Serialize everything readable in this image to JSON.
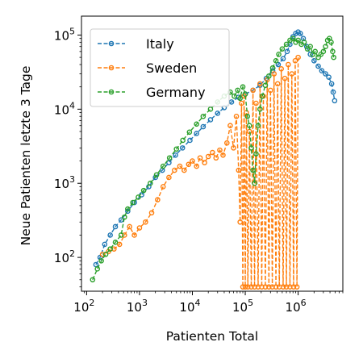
{
  "chart_data": {
    "type": "line",
    "title": "",
    "xlabel": "Patienten Total",
    "ylabel": "Neue Patienten letzte 3 Tage",
    "xscale": "log",
    "yscale": "log",
    "xlim": [
      80,
      7000000
    ],
    "ylim": [
      35,
      180000
    ],
    "grid": false,
    "legend_position": "top-left",
    "x_ticks": [
      {
        "base": "10",
        "exp": "2"
      },
      {
        "base": "10",
        "exp": "3"
      },
      {
        "base": "10",
        "exp": "4"
      },
      {
        "base": "10",
        "exp": "5"
      },
      {
        "base": "10",
        "exp": "6"
      }
    ],
    "y_ticks": [
      {
        "base": "10",
        "exp": "2"
      },
      {
        "base": "10",
        "exp": "3"
      },
      {
        "base": "10",
        "exp": "4"
      },
      {
        "base": "10",
        "exp": "5"
      }
    ],
    "series": [
      {
        "name": "Italy",
        "color": "#1f77b4",
        "marker": "circle-open",
        "linestyle": "dashed",
        "points": [
          [
            150,
            80
          ],
          [
            180,
            100
          ],
          [
            220,
            150
          ],
          [
            280,
            200
          ],
          [
            350,
            260
          ],
          [
            450,
            320
          ],
          [
            600,
            420
          ],
          [
            800,
            550
          ],
          [
            1100,
            700
          ],
          [
            1500,
            900
          ],
          [
            2000,
            1200
          ],
          [
            2700,
            1500
          ],
          [
            3600,
            1900
          ],
          [
            4800,
            2400
          ],
          [
            6500,
            3000
          ],
          [
            9000,
            3800
          ],
          [
            12000,
            4700
          ],
          [
            16000,
            5800
          ],
          [
            22000,
            7200
          ],
          [
            30000,
            8800
          ],
          [
            40000,
            10500
          ],
          [
            55000,
            12500
          ],
          [
            75000,
            14500
          ],
          [
            100000,
            16000
          ],
          [
            140000,
            18000
          ],
          [
            190000,
            21000
          ],
          [
            250000,
            26000
          ],
          [
            330000,
            33000
          ],
          [
            420000,
            40000
          ],
          [
            520000,
            48000
          ],
          [
            620000,
            60000
          ],
          [
            700000,
            75000
          ],
          [
            800000,
            95000
          ],
          [
            900000,
            105000
          ],
          [
            1000000,
            110000
          ],
          [
            1100000,
            105000
          ],
          [
            1250000,
            90000
          ],
          [
            1450000,
            70000
          ],
          [
            1700000,
            55000
          ],
          [
            2000000,
            45000
          ],
          [
            2400000,
            38000
          ],
          [
            2800000,
            33000
          ],
          [
            3300000,
            30000
          ],
          [
            3800000,
            27000
          ],
          [
            4300000,
            22000
          ],
          [
            4600000,
            17000
          ],
          [
            4900000,
            13000
          ]
        ]
      },
      {
        "name": "Sweden",
        "color": "#ff7f0e",
        "marker": "circle-open",
        "linestyle": "dashed",
        "points": [
          [
            200,
            110
          ],
          [
            260,
            120
          ],
          [
            330,
            130
          ],
          [
            420,
            150
          ],
          [
            520,
            200
          ],
          [
            650,
            260
          ],
          [
            800,
            200
          ],
          [
            1000,
            250
          ],
          [
            1300,
            300
          ],
          [
            1700,
            400
          ],
          [
            2200,
            600
          ],
          [
            2800,
            900
          ],
          [
            3600,
            1200
          ],
          [
            4600,
            1500
          ],
          [
            5800,
            1700
          ],
          [
            7000,
            1500
          ],
          [
            8500,
            1800
          ],
          [
            10000,
            2000
          ],
          [
            12000,
            1700
          ],
          [
            14000,
            2200
          ],
          [
            17000,
            1900
          ],
          [
            20000,
            2300
          ],
          [
            24000,
            2600
          ],
          [
            28000,
            2200
          ],
          [
            33000,
            2800
          ],
          [
            38000,
            2400
          ],
          [
            45000,
            3500
          ],
          [
            52000,
            6000
          ],
          [
            60000,
            3000
          ],
          [
            68000,
            8000
          ],
          [
            75000,
            1500
          ],
          [
            80000,
            300
          ],
          [
            85000,
            12000
          ],
          [
            90000,
            40
          ],
          [
            95000,
            15000
          ],
          [
            100000,
            40
          ],
          [
            105000,
            9000
          ],
          [
            112000,
            40
          ],
          [
            120000,
            5000
          ],
          [
            130000,
            40
          ],
          [
            140000,
            18000
          ],
          [
            150000,
            40
          ],
          [
            160000,
            12000
          ],
          [
            175000,
            40
          ],
          [
            190000,
            22000
          ],
          [
            205000,
            40
          ],
          [
            220000,
            15000
          ],
          [
            240000,
            40
          ],
          [
            260000,
            25000
          ],
          [
            280000,
            40
          ],
          [
            300000,
            18000
          ],
          [
            325000,
            40
          ],
          [
            350000,
            30000
          ],
          [
            380000,
            40
          ],
          [
            410000,
            22000
          ],
          [
            440000,
            40
          ],
          [
            480000,
            35000
          ],
          [
            520000,
            40
          ],
          [
            560000,
            26000
          ],
          [
            600000,
            40
          ],
          [
            650000,
            40000
          ],
          [
            700000,
            40
          ],
          [
            760000,
            30000
          ],
          [
            820000,
            40
          ],
          [
            880000,
            45000
          ],
          [
            950000,
            40
          ],
          [
            1000000,
            50000
          ]
        ]
      },
      {
        "name": "Germany",
        "color": "#2ca02c",
        "marker": "circle-open",
        "linestyle": "dashed",
        "points": [
          [
            130,
            50
          ],
          [
            160,
            70
          ],
          [
            190,
            90
          ],
          [
            230,
            110
          ],
          [
            280,
            130
          ],
          [
            350,
            160
          ],
          [
            450,
            200
          ],
          [
            520,
            350
          ],
          [
            600,
            450
          ],
          [
            750,
            550
          ],
          [
            950,
            650
          ],
          [
            1200,
            800
          ],
          [
            1600,
            1000
          ],
          [
            2100,
            1300
          ],
          [
            2800,
            1700
          ],
          [
            3700,
            2200
          ],
          [
            5000,
            2900
          ],
          [
            6600,
            3800
          ],
          [
            8800,
            4900
          ],
          [
            12000,
            6300
          ],
          [
            16000,
            8000
          ],
          [
            22000,
            10000
          ],
          [
            30000,
            12500
          ],
          [
            40000,
            15000
          ],
          [
            52000,
            17000
          ],
          [
            62000,
            15000
          ],
          [
            72000,
            18000
          ],
          [
            80000,
            14000
          ],
          [
            90000,
            20000
          ],
          [
            100000,
            16000
          ],
          [
            110000,
            8000
          ],
          [
            120000,
            6000
          ],
          [
            130000,
            3000
          ],
          [
            140000,
            1500
          ],
          [
            150000,
            1000
          ],
          [
            160000,
            2500
          ],
          [
            175000,
            6000
          ],
          [
            190000,
            10000
          ],
          [
            210000,
            15000
          ],
          [
            240000,
            21000
          ],
          [
            280000,
            28000
          ],
          [
            330000,
            36000
          ],
          [
            380000,
            45000
          ],
          [
            430000,
            55000
          ],
          [
            500000,
            65000
          ],
          [
            600000,
            75000
          ],
          [
            700000,
            85000
          ],
          [
            800000,
            90000
          ],
          [
            900000,
            80000
          ],
          [
            1000000,
            85000
          ],
          [
            1150000,
            75000
          ],
          [
            1300000,
            80000
          ],
          [
            1500000,
            65000
          ],
          [
            1700000,
            70000
          ],
          [
            1900000,
            55000
          ],
          [
            2100000,
            60000
          ],
          [
            2400000,
            50000
          ],
          [
            2700000,
            55000
          ],
          [
            3000000,
            60000
          ],
          [
            3300000,
            70000
          ],
          [
            3600000,
            85000
          ],
          [
            3900000,
            90000
          ],
          [
            4200000,
            80000
          ],
          [
            4500000,
            60000
          ],
          [
            4700000,
            50000
          ]
        ]
      }
    ]
  }
}
